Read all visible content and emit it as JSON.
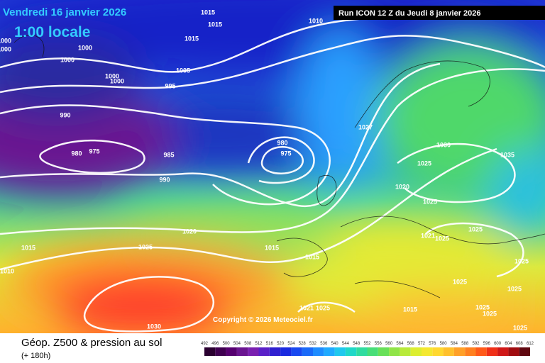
{
  "header": {
    "date": "Vendredi 16 janvier 2026",
    "time": "1:00 locale",
    "run": "Run ICON 12 Z du Jeudi 8 janvier 2026"
  },
  "map": {
    "copyright": "Copyright © 2026 Meteociel.fr",
    "isobar_labels": [
      "1015",
      "1015",
      "1010",
      "1000",
      "1000",
      "1000",
      "1000",
      "1015",
      "1005",
      "1000",
      "1000",
      "995",
      "990",
      "980",
      "975",
      "985",
      "990",
      "980",
      "975",
      "1027",
      "1030",
      "1035",
      "1025",
      "1020",
      "1025",
      "1020",
      "1015",
      "1025",
      "1015",
      "1015",
      "1010",
      "1025",
      "1021",
      "1025",
      "1025",
      "1025",
      "1025",
      "1025",
      "1021",
      "1015",
      "1025",
      "1025",
      "1030",
      "1025"
    ]
  },
  "footer": {
    "title": "Géop. Z500 & pression au sol",
    "lead": "(+ 180h)",
    "scale": [
      "492",
      "496",
      "500",
      "504",
      "508",
      "512",
      "516",
      "520",
      "524",
      "528",
      "532",
      "536",
      "540",
      "544",
      "548",
      "552",
      "556",
      "560",
      "564",
      "568",
      "572",
      "576",
      "580",
      "584",
      "588",
      "592",
      "596",
      "600",
      "604",
      "608",
      "612"
    ]
  }
}
